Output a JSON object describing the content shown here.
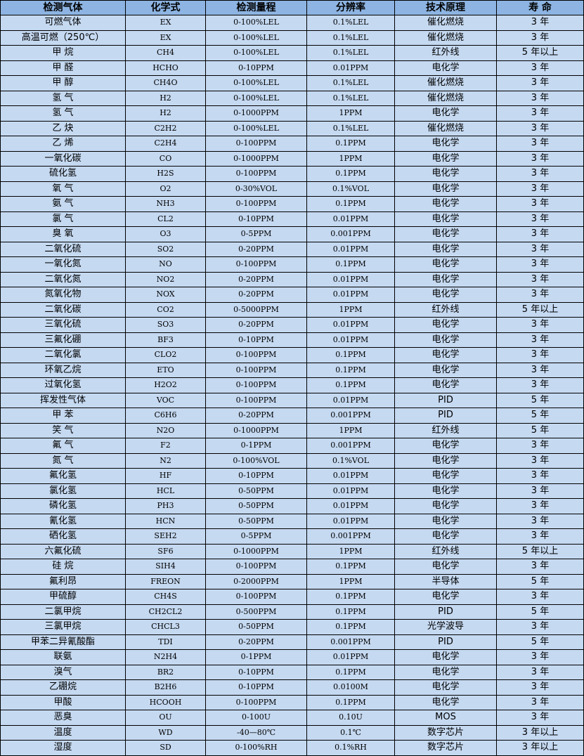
{
  "headers": [
    "检测气体",
    "化学式",
    "检测量程",
    "分辨率",
    "技术原理",
    "寿 命"
  ],
  "colors": {
    "header_bg": "#8db4e2",
    "row_bg": "#c5d9f1",
    "border": "#000000"
  },
  "rows": [
    [
      "可燃气体",
      "EX",
      "0-100%LEL",
      "0.1%LEL",
      "催化燃烧",
      "3 年"
    ],
    [
      "高温可燃（250℃）",
      "EX",
      "0-100%LEL",
      "0.1%LEL",
      "催化燃烧",
      "3 年"
    ],
    [
      "甲 烷",
      "CH4",
      "0-100%LEL",
      "0.1%LEL",
      "红外线",
      "5 年以上"
    ],
    [
      "甲 醛",
      "HCHO",
      "0-10PPM",
      "0.01PPM",
      "电化学",
      "3 年"
    ],
    [
      "甲 醇",
      "CH4O",
      "0-100%LEL",
      "0.1%LEL",
      "催化燃烧",
      "3 年"
    ],
    [
      "氢 气",
      "H2",
      "0-100%LEL",
      "0.1%LEL",
      "催化燃烧",
      "3 年"
    ],
    [
      "氢 气",
      "H2",
      "0-1000PPM",
      "1PPM",
      "电化学",
      "3 年"
    ],
    [
      "乙 炔",
      "C2H2",
      "0-100%LEL",
      "0.1%LEL",
      "催化燃烧",
      "3 年"
    ],
    [
      "乙 烯",
      "C2H4",
      "0-100PPM",
      "0.1PPM",
      "电化学",
      "3 年"
    ],
    [
      "一氧化碳",
      "CO",
      "0-1000PPM",
      "1PPM",
      "电化学",
      "3 年"
    ],
    [
      "硫化氢",
      "H2S",
      "0-100PPM",
      "0.1PPM",
      "电化学",
      "3 年"
    ],
    [
      "氧 气",
      "O2",
      "0-30%VOL",
      "0.1%VOL",
      "电化学",
      "3 年"
    ],
    [
      "氨 气",
      "NH3",
      "0-100PPM",
      "0.1PPM",
      "电化学",
      "3 年"
    ],
    [
      "氯 气",
      "CL2",
      "0-10PPM",
      "0.01PPM",
      "电化学",
      "3 年"
    ],
    [
      "臭 氧",
      "O3",
      "0-5PPM",
      "0.001PPM",
      "电化学",
      "3 年"
    ],
    [
      "二氧化硫",
      "SO2",
      "0-20PPM",
      "0.01PPM",
      "电化学",
      "3 年"
    ],
    [
      "一氧化氮",
      "NO",
      "0-100PPM",
      "0.1PPM",
      "电化学",
      "3 年"
    ],
    [
      "二氧化氮",
      "NO2",
      "0-20PPM",
      "0.01PPM",
      "电化学",
      "3 年"
    ],
    [
      "氮氧化物",
      "NOX",
      "0-20PPM",
      "0.01PPM",
      "电化学",
      "3 年"
    ],
    [
      "二氧化碳",
      "CO2",
      "0-5000PPM",
      "1PPM",
      "红外线",
      "5 年以上"
    ],
    [
      "三氧化硫",
      "SO3",
      "0-20PPM",
      "0.01PPM",
      "电化学",
      "3 年"
    ],
    [
      "三氟化硼",
      "BF3",
      "0-10PPM",
      "0.01PPM",
      "电化学",
      "3 年"
    ],
    [
      "二氧化氯",
      "CLO2",
      "0-100PPM",
      "0.1PPM",
      "电化学",
      "3 年"
    ],
    [
      "环氧乙烷",
      "ETO",
      "0-100PPM",
      "0.1PPM",
      "电化学",
      "3 年"
    ],
    [
      "过氧化氢",
      "H2O2",
      "0-100PPM",
      "0.1PPM",
      "电化学",
      "3 年"
    ],
    [
      "挥发性气体",
      "VOC",
      "0-100PPM",
      "0.01PPM",
      "PID",
      "5 年"
    ],
    [
      "甲 苯",
      "C6H6",
      "0-20PPM",
      "0.001PPM",
      "PID",
      "5 年"
    ],
    [
      "笑 气",
      "N2O",
      "0-1000PPM",
      "1PPM",
      "红外线",
      "5 年"
    ],
    [
      "氟 气",
      "F2",
      "0-1PPM",
      "0.001PPM",
      "电化学",
      "3 年"
    ],
    [
      "氮 气",
      "N2",
      "0-100%VOL",
      "0.1%VOL",
      "电化学",
      "3 年"
    ],
    [
      "氟化氢",
      "HF",
      "0-10PPM",
      "0.01PPM",
      "电化学",
      "3 年"
    ],
    [
      "氯化氢",
      "HCL",
      "0-50PPM",
      "0.01PPM",
      "电化学",
      "3 年"
    ],
    [
      "磷化氢",
      "PH3",
      "0-50PPM",
      "0.01PPM",
      "电化学",
      "3 年"
    ],
    [
      "氰化氢",
      "HCN",
      "0-50PPM",
      "0.01PPM",
      "电化学",
      "3 年"
    ],
    [
      "硒化氢",
      "SEH2",
      "0-5PPM",
      "0.001PPM",
      "电化学",
      "3 年"
    ],
    [
      "六氟化硫",
      "SF6",
      "0-1000PPM",
      "1PPM",
      "红外线",
      "5 年以上"
    ],
    [
      "硅 烷",
      "SIH4",
      "0-100PPM",
      "0.1PPM",
      "电化学",
      "3 年"
    ],
    [
      "氟利昂",
      "FREON",
      "0-2000PPM",
      "1PPM",
      "半导体",
      "5 年"
    ],
    [
      "甲硫醇",
      "CH4S",
      "0-100PPM",
      "0.1PPM",
      "电化学",
      "3 年"
    ],
    [
      "二氯甲烷",
      "CH2CL2",
      "0-500PPM",
      "0.1PPM",
      "PID",
      "5 年"
    ],
    [
      "三氯甲烷",
      "CHCL3",
      "0-50PPM",
      "0.1PPM",
      "光学波导",
      "3 年"
    ],
    [
      "甲苯二异氰酸酯",
      "TDI",
      "0-20PPM",
      "0.001PPM",
      "PID",
      "5 年"
    ],
    [
      "联氨",
      "N2H4",
      "0-1PPM",
      "0.01PPM",
      "电化学",
      "3 年"
    ],
    [
      "溴气",
      "BR2",
      "0-10PPM",
      "0.1PPM",
      "电化学",
      "3 年"
    ],
    [
      "乙硼烷",
      "B2H6",
      "0-10PPM",
      "0.0100M",
      "电化学",
      "3 年"
    ],
    [
      "甲酸",
      "HCOOH",
      "0-100PPM",
      "0.1PPM",
      "电化学",
      "3 年"
    ],
    [
      "恶臭",
      "OU",
      "0-100U",
      "0.10U",
      "MOS",
      "3 年"
    ],
    [
      "温度",
      "WD",
      "-40—80℃",
      "0.1℃",
      "数字芯片",
      "3 年以上"
    ],
    [
      "湿度",
      "SD",
      "0-100%RH",
      "0.1%RH",
      "数字芯片",
      "3 年以上"
    ]
  ]
}
